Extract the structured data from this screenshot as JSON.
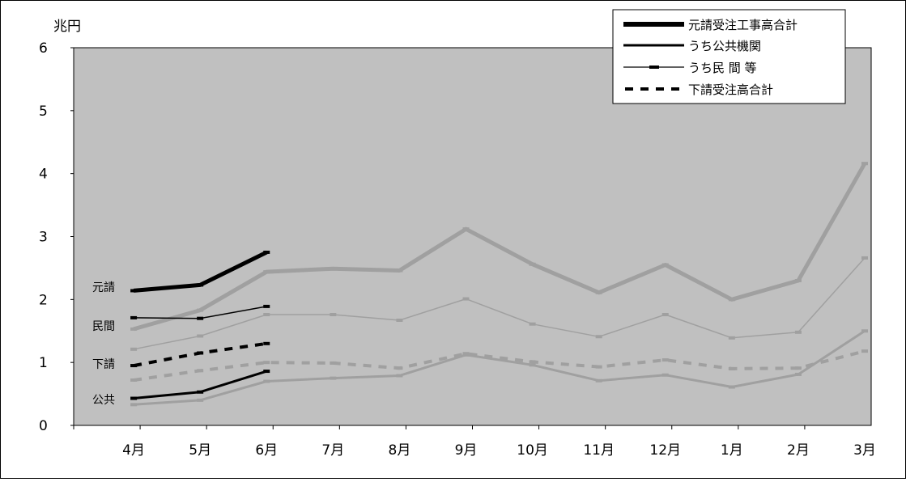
{
  "chart_data": {
    "type": "line",
    "ylabel": "兆円",
    "ylim": [
      0,
      6
    ],
    "yticks": [
      0,
      1,
      2,
      3,
      4,
      5,
      6
    ],
    "categories": [
      "4月",
      "5月",
      "6月",
      "7月",
      "8月",
      "9月",
      "10月",
      "11月",
      "12月",
      "1月",
      "2月",
      "3月"
    ],
    "grid": false,
    "legend_position": "top-right",
    "series": [
      {
        "name": "元請受注工事高合計",
        "style": "thick",
        "color": "#000000",
        "values": [
          2.14,
          2.23,
          2.75,
          null,
          null,
          null,
          null,
          null,
          null,
          null,
          null,
          null
        ]
      },
      {
        "name": "うち公共機関",
        "style": "medium",
        "color": "#000000",
        "values": [
          0.43,
          0.53,
          0.86,
          null,
          null,
          null,
          null,
          null,
          null,
          null,
          null,
          null
        ]
      },
      {
        "name": "うち民 間 等",
        "style": "thin",
        "color": "#000000",
        "values": [
          1.71,
          1.7,
          1.89,
          null,
          null,
          null,
          null,
          null,
          null,
          null,
          null,
          null
        ]
      },
      {
        "name": "下請受注高合計",
        "style": "dashed",
        "color": "#000000",
        "values": [
          0.95,
          1.15,
          1.3,
          null,
          null,
          null,
          null,
          null,
          null,
          null,
          null,
          null
        ]
      },
      {
        "style": "thick",
        "color": "#a0a0a0",
        "values": [
          1.53,
          1.83,
          2.44,
          2.49,
          2.46,
          3.12,
          2.56,
          2.11,
          2.55,
          2.0,
          2.3,
          4.16
        ]
      },
      {
        "style": "thin",
        "color": "#a0a0a0",
        "values": [
          1.21,
          1.42,
          1.76,
          1.76,
          1.67,
          2.01,
          1.61,
          1.41,
          1.76,
          1.39,
          1.48,
          2.66
        ]
      },
      {
        "style": "dashed",
        "color": "#a0a0a0",
        "values": [
          0.72,
          0.87,
          1.0,
          0.99,
          0.91,
          1.14,
          1.01,
          0.93,
          1.04,
          0.9,
          0.91,
          1.18
        ]
      },
      {
        "style": "medium",
        "color": "#a0a0a0",
        "values": [
          0.33,
          0.4,
          0.7,
          0.75,
          0.79,
          1.12,
          0.96,
          0.71,
          0.8,
          0.61,
          0.81,
          1.5
        ]
      }
    ],
    "annotations": [
      "元請",
      "民間",
      "下請",
      "公共"
    ]
  }
}
